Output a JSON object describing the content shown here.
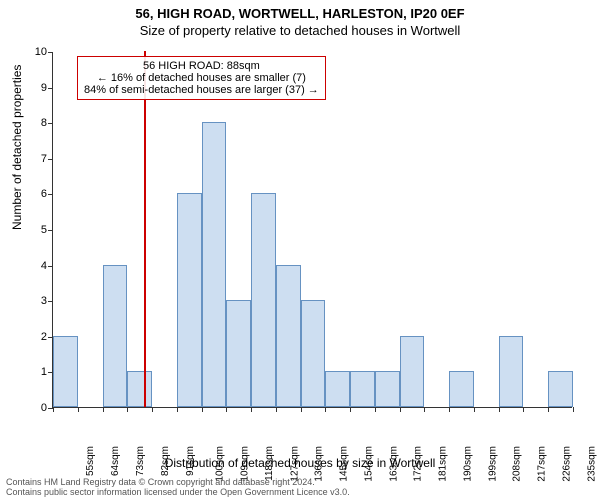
{
  "title_line1": "56, HIGH ROAD, WORTWELL, HARLESTON, IP20 0EF",
  "title_line2": "Size of property relative to detached houses in Wortwell",
  "chart": {
    "type": "histogram",
    "ylabel": "Number of detached properties",
    "xlabel": "Distribution of detached houses by size in Wortwell",
    "ylim": [
      0,
      10
    ],
    "ytick_step": 1,
    "x_start": 55,
    "x_step": 9,
    "bar_count": 21,
    "values": [
      2,
      0,
      4,
      1,
      0,
      6,
      8,
      3,
      6,
      4,
      3,
      1,
      1,
      1,
      2,
      0,
      1,
      0,
      2,
      0,
      1
    ],
    "bar_fill": "#cddef1",
    "bar_border": "#6692c2",
    "background_color": "#ffffff",
    "axis_color": "#333333",
    "reference_line": {
      "x_value": 88,
      "color": "#cc0000"
    },
    "callout": {
      "line1": "56 HIGH ROAD: 88sqm",
      "line2": "← 16% of detached houses are smaller (7)",
      "line3": "84% of semi-detached houses are larger (37) →",
      "border_color": "#cc0000"
    },
    "x_unit_suffix": "sqm",
    "label_fontsize": 12,
    "tick_fontsize": 11
  },
  "footer": {
    "line1": "Contains HM Land Registry data © Crown copyright and database right 2024.",
    "line2": "Contains public sector information licensed under the Open Government Licence v3.0."
  }
}
